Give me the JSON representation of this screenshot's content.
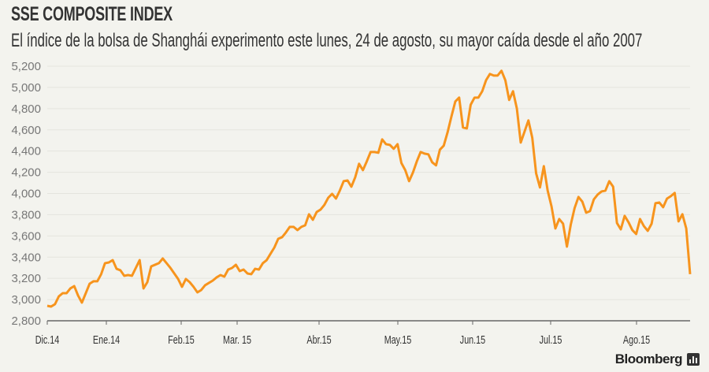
{
  "chart_data": {
    "type": "line",
    "title": "SSE COMPOSITE INDEX",
    "subtitle": "El índice de la bolsa de Shanghái experimento este lunes, 24 de agosto, su mayor caída desde el año 2007",
    "xlabel": "",
    "ylabel": "",
    "ylim": [
      2800,
      5200
    ],
    "yticks": [
      "2,800",
      "3,000",
      "3,200",
      "3,400",
      "3,600",
      "3,800",
      "4,000",
      "4,200",
      "4,400",
      "4,600",
      "4,800",
      "5,000",
      "5,200"
    ],
    "xticks": [
      "Dic.14",
      "Ene.14",
      "Feb.15",
      "Mar. 15",
      "Abr.15",
      "May.15",
      "Jun.15",
      "Jul.15",
      "Ago.15"
    ],
    "grid": true,
    "series": [
      {
        "name": "SSE Composite",
        "color": "#f7941d",
        "values": [
          2941,
          2934,
          2956,
          3030,
          3060,
          3060,
          3105,
          3127,
          3038,
          2971,
          3060,
          3149,
          3172,
          3172,
          3239,
          3343,
          3350,
          3372,
          3290,
          3276,
          3224,
          3231,
          3224,
          3298,
          3372,
          3105,
          3164,
          3313,
          3328,
          3343,
          3387,
          3343,
          3298,
          3246,
          3194,
          3120,
          3194,
          3164,
          3120,
          3068,
          3090,
          3135,
          3157,
          3179,
          3209,
          3231,
          3216,
          3283,
          3298,
          3328,
          3268,
          3283,
          3246,
          3239,
          3290,
          3283,
          3343,
          3372,
          3432,
          3491,
          3573,
          3588,
          3633,
          3685,
          3685,
          3655,
          3685,
          3700,
          3804,
          3752,
          3826,
          3848,
          3893,
          3960,
          3997,
          3952,
          4027,
          4116,
          4123,
          4064,
          4153,
          4280,
          4220,
          4302,
          4391,
          4391,
          4384,
          4510,
          4465,
          4458,
          4421,
          4465,
          4287,
          4220,
          4116,
          4198,
          4302,
          4391,
          4376,
          4369,
          4294,
          4265,
          4413,
          4451,
          4577,
          4726,
          4867,
          4904,
          4622,
          4614,
          4837,
          4904,
          4904,
          4964,
          5068,
          5127,
          5112,
          5112,
          5157,
          5068,
          4882,
          4964,
          4800,
          4480,
          4584,
          4689,
          4525,
          4190,
          4057,
          4257,
          4027,
          3878,
          3670,
          3759,
          3715,
          3499,
          3707,
          3863,
          3967,
          3923,
          3819,
          3834,
          3945,
          3990,
          4019,
          4027,
          4116,
          4064,
          3722,
          3662,
          3789,
          3729,
          3655,
          3618,
          3759,
          3692,
          3648,
          3715,
          3908,
          3915,
          3871,
          3952,
          3975,
          4005,
          3737,
          3804,
          3670,
          3239
        ]
      }
    ]
  },
  "footer": {
    "brand": "Bloomberg"
  }
}
